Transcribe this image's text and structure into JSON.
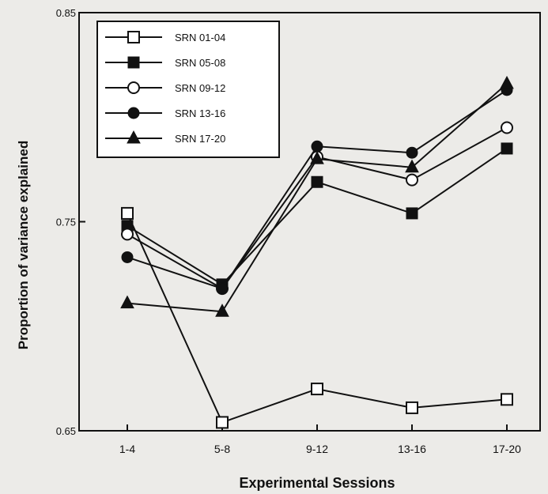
{
  "chart_data": {
    "type": "line",
    "xlabel": "Experimental Sessions",
    "ylabel": "Proportion of variance explained",
    "categories": [
      "1-4",
      "5-8",
      "9-12",
      "13-16",
      "17-20"
    ],
    "ylim": [
      0.65,
      0.85
    ],
    "yticks": [
      "0.85",
      "0.75",
      "0.65"
    ],
    "ytick_values": [
      0.85,
      0.75,
      0.65
    ],
    "grid": false,
    "legend_position": "top-left",
    "series": [
      {
        "name": "SRN 01-04",
        "marker": "square-open",
        "values": [
          0.754,
          0.654,
          0.67,
          0.661,
          0.665
        ]
      },
      {
        "name": "SRN 05-08",
        "marker": "square-filled",
        "values": [
          0.748,
          0.72,
          0.769,
          0.754,
          0.785
        ]
      },
      {
        "name": "SRN 09-12",
        "marker": "circle-open",
        "values": [
          0.744,
          0.718,
          0.781,
          0.77,
          0.795
        ]
      },
      {
        "name": "SRN 13-16",
        "marker": "circle-filled",
        "values": [
          0.733,
          0.718,
          0.786,
          0.783,
          0.813
        ]
      },
      {
        "name": "SRN 17-20",
        "marker": "triangle-filled",
        "values": [
          0.711,
          0.707,
          0.78,
          0.776,
          0.816
        ]
      }
    ]
  }
}
